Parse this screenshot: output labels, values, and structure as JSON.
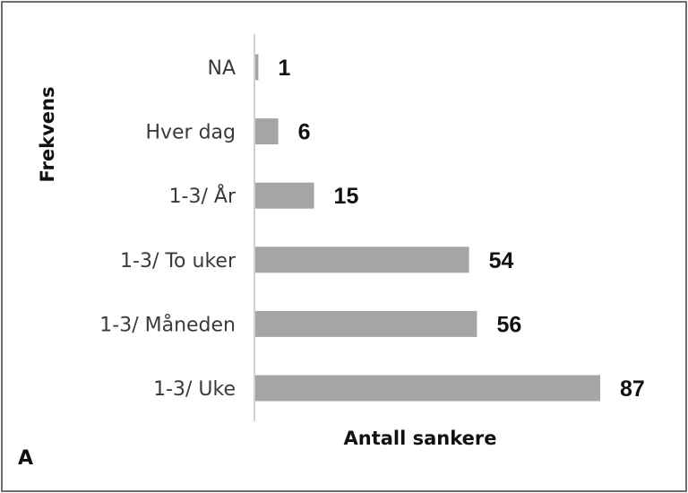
{
  "panel_label": "A",
  "chart_data": {
    "type": "bar",
    "orientation": "horizontal",
    "categories": [
      "NA",
      "Hver dag",
      "1-3/ År",
      "1-3/ To uker",
      "1-3/ Måneden",
      "1-3/ Uke"
    ],
    "values": [
      1,
      6,
      15,
      54,
      56,
      87
    ],
    "data_labels": [
      "1",
      "6",
      "15",
      "54",
      "56",
      "87"
    ],
    "xlabel": "Antall sankere",
    "ylabel": "Frekvens",
    "xlim": [
      0,
      100
    ],
    "grid": false,
    "legend": "none",
    "bar_color": "#a5a5a5"
  }
}
